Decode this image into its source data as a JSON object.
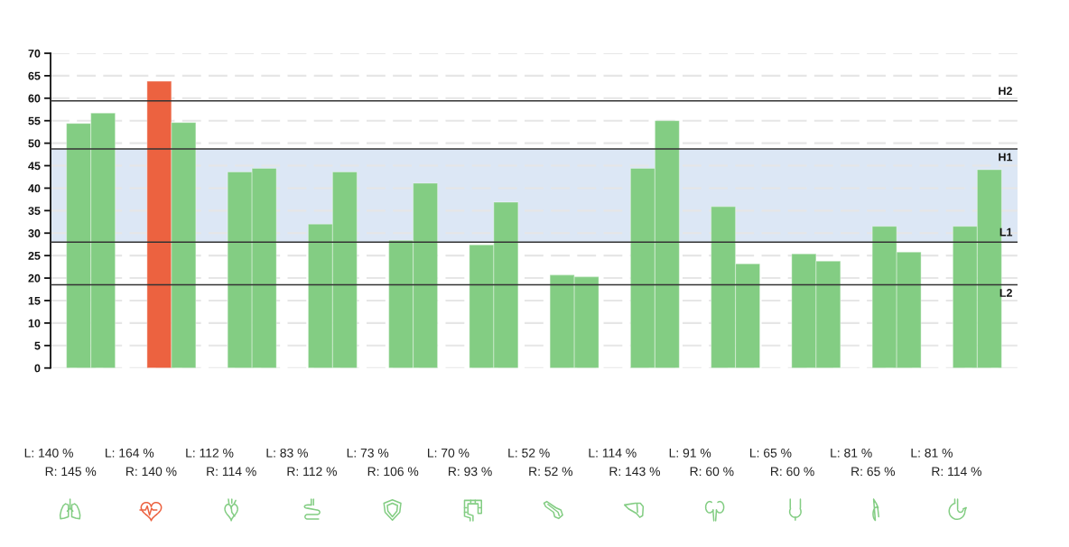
{
  "chart_data": {
    "type": "bar",
    "categories": [
      null,
      null,
      null,
      null,
      null,
      null,
      null,
      null,
      null,
      null,
      null,
      null
    ],
    "series": [
      {
        "colors": [
          "#83cd83",
          "#ec6240",
          "#83cd83",
          "#83cd83",
          "#83cd83",
          "#83cd83",
          "#83cd83",
          "#83cd83",
          "#83cd83",
          "#83cd83",
          "#83cd83",
          "#83cd83"
        ],
        "values": [
          54.4,
          63.8,
          43.6,
          32.0,
          28.4,
          27.4,
          20.7,
          44.4,
          35.9,
          25.4,
          31.5,
          31.5
        ]
      },
      {
        "color": "#83cd83",
        "values": [
          56.7,
          54.6,
          44.4,
          43.6,
          41.1,
          36.9,
          20.3,
          55.0,
          23.2,
          23.8,
          25.8,
          44.1
        ]
      }
    ],
    "ylim": [
      0,
      70
    ],
    "yticks": [
      0,
      5,
      10,
      15,
      20,
      25,
      30,
      35,
      40,
      45,
      50,
      55,
      60,
      65,
      70
    ],
    "grid": "y",
    "tick_labels": "y",
    "ref_lines": [
      {
        "axis": "y",
        "value": 59.4,
        "label": "H2",
        "color": "#333333"
      },
      {
        "axis": "y",
        "value": 48.7,
        "label": "H1",
        "color": "#333333"
      },
      {
        "axis": "y",
        "value": 28.0,
        "label": "L1",
        "color": "#333333"
      },
      {
        "axis": "y",
        "value": 18.5,
        "label": "L2",
        "color": "#333333"
      }
    ],
    "bands": [
      {
        "axis": "y",
        "from": 28.0,
        "to": 48.7,
        "color": "#dce7f5"
      }
    ],
    "annotations": [
      "L: 140 %",
      "R: 145 %",
      "L: 164 %",
      "R: 140 %",
      "L: 112 %",
      "R: 114 %",
      "L: 83 %",
      "R: 112 %",
      "L: 73 %",
      "R: 106 %",
      "L: 70 %",
      "R: 93 %",
      "L: 52 %",
      "R: 52 %",
      "L: 114 %",
      "R: 143 %",
      "L: 91 %",
      "R: 60 %",
      "L: 65 %",
      "R: 60 %",
      "L: 81 %",
      "R: 65 %",
      "L: 81 %",
      "R: 114 %"
    ]
  }
}
